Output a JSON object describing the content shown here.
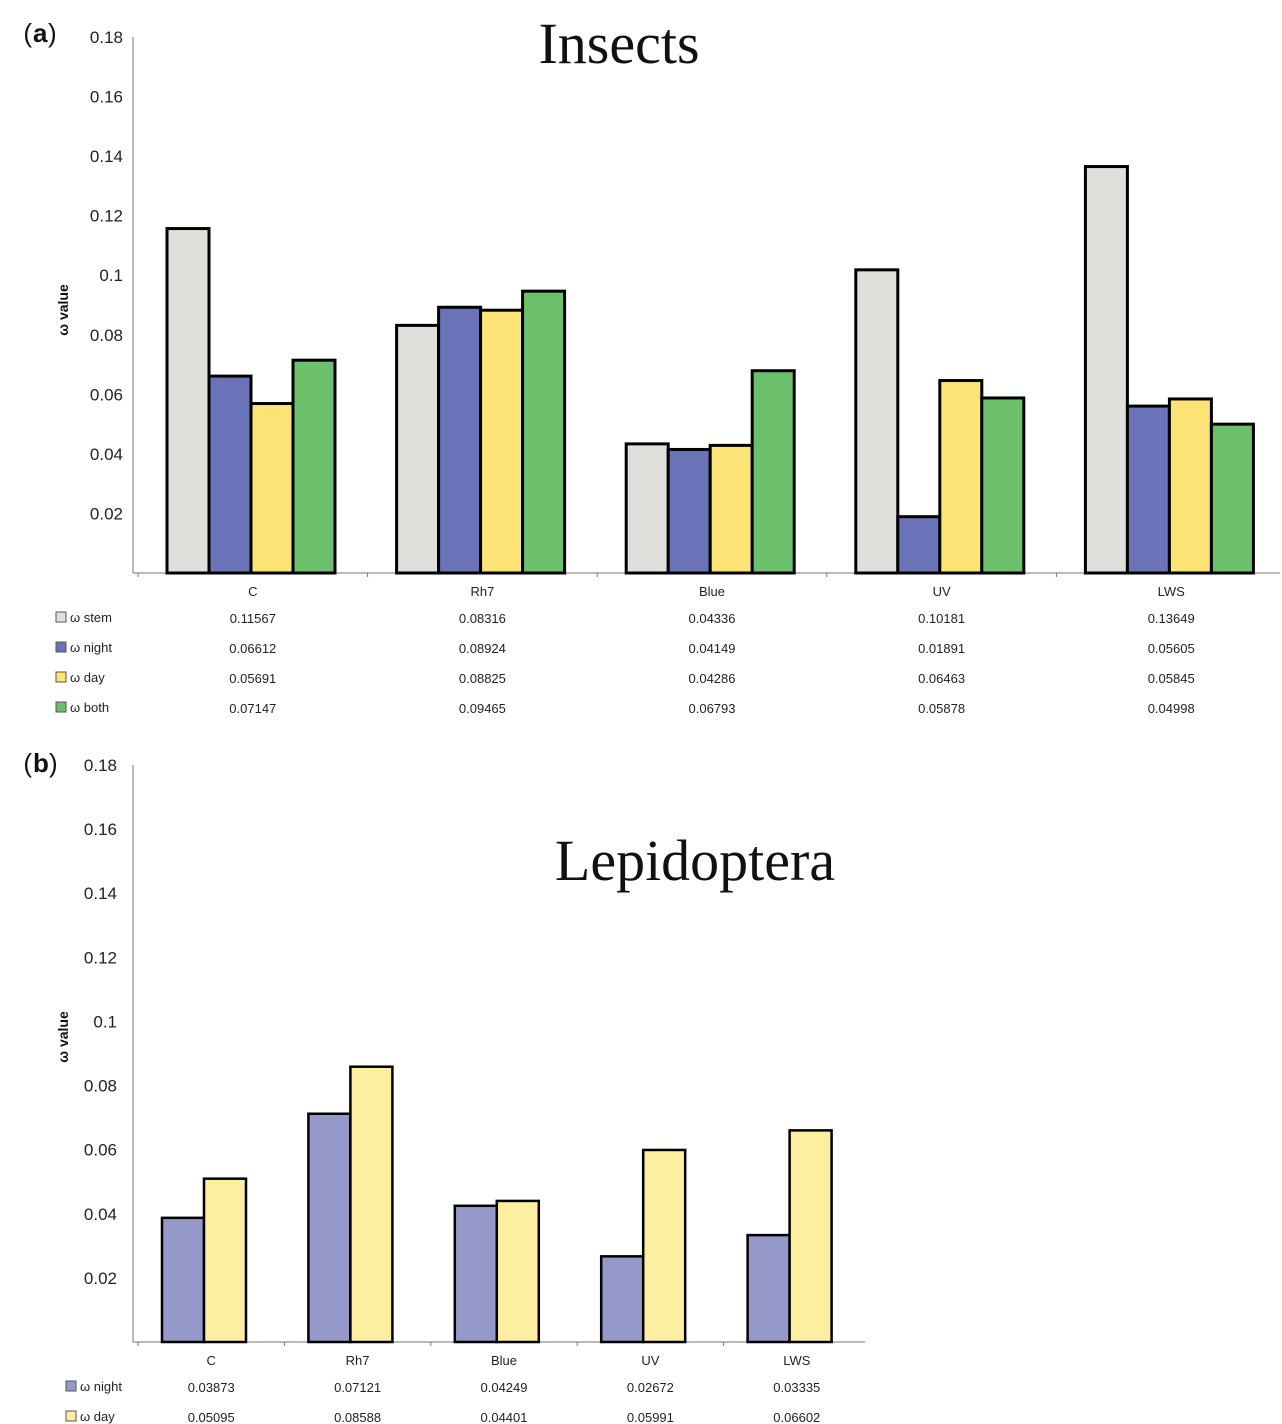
{
  "chart_data": [
    {
      "type": "bar",
      "panel_label": "a",
      "title": "Insects",
      "ylabel": "ω value",
      "ylim": [
        0,
        0.18
      ],
      "yticks": [
        "0.02",
        "0.04",
        "0.06",
        "0.08",
        "0.1",
        "0.12",
        "0.14",
        "0.16",
        "0.18"
      ],
      "categories": [
        "C",
        "Rh7",
        "Blue",
        "UV",
        "LWS"
      ],
      "series": [
        {
          "name": "ω  stem",
          "color": "#e0dfdc",
          "labels": [
            "0.11567",
            "0.08316",
            "0.04336",
            "0.10181",
            "0.13649"
          ],
          "values": [
            0.11567,
            0.08316,
            0.04336,
            0.10181,
            0.13649
          ]
        },
        {
          "name": "ω night",
          "color": "#6a72b8",
          "labels": [
            "0.06612",
            "0.08924",
            "0.04149",
            "0.01891",
            "0.05605"
          ],
          "values": [
            0.06612,
            0.08924,
            0.04149,
            0.01891,
            0.05605
          ]
        },
        {
          "name": "ω day",
          "color": "#fbe375",
          "labels": [
            "0.05691",
            "0.08825",
            "0.04286",
            "0.06463",
            "0.05845"
          ],
          "values": [
            0.05691,
            0.08825,
            0.04286,
            0.06463,
            0.05845
          ]
        },
        {
          "name": "ω both",
          "color": "#6cc06c",
          "labels": [
            "0.07147",
            "0.09465",
            "0.06793",
            "0.05878",
            "0.04998"
          ],
          "values": [
            0.07147,
            0.09465,
            0.06793,
            0.05878,
            0.04998
          ]
        }
      ],
      "legend": "data-table-below"
    },
    {
      "type": "bar",
      "panel_label": "b",
      "title": "Lepidoptera",
      "ylabel": "ω value",
      "ylim": [
        0,
        0.18
      ],
      "yticks": [
        "0.02",
        "0.04",
        "0.06",
        "0.08",
        "0.1",
        "0.12",
        "0.14",
        "0.16",
        "0.18"
      ],
      "categories": [
        "C",
        "Rh7",
        "Blue",
        "UV",
        "LWS"
      ],
      "series": [
        {
          "name": "ω night",
          "color": "#9599c9",
          "labels": [
            "0.03873",
            "0.07121",
            "0.04249",
            "0.02672",
            "0.03335"
          ],
          "values": [
            0.03873,
            0.07121,
            0.04249,
            0.02672,
            0.03335
          ]
        },
        {
          "name": "ω day",
          "color": "#fdeea0",
          "labels": [
            "0.05095",
            "0.08588",
            "0.04401",
            "0.05991",
            "0.06602"
          ],
          "values": [
            0.05095,
            0.08588,
            0.04401,
            0.05991,
            0.06602
          ]
        }
      ],
      "legend": "data-table-below"
    }
  ]
}
